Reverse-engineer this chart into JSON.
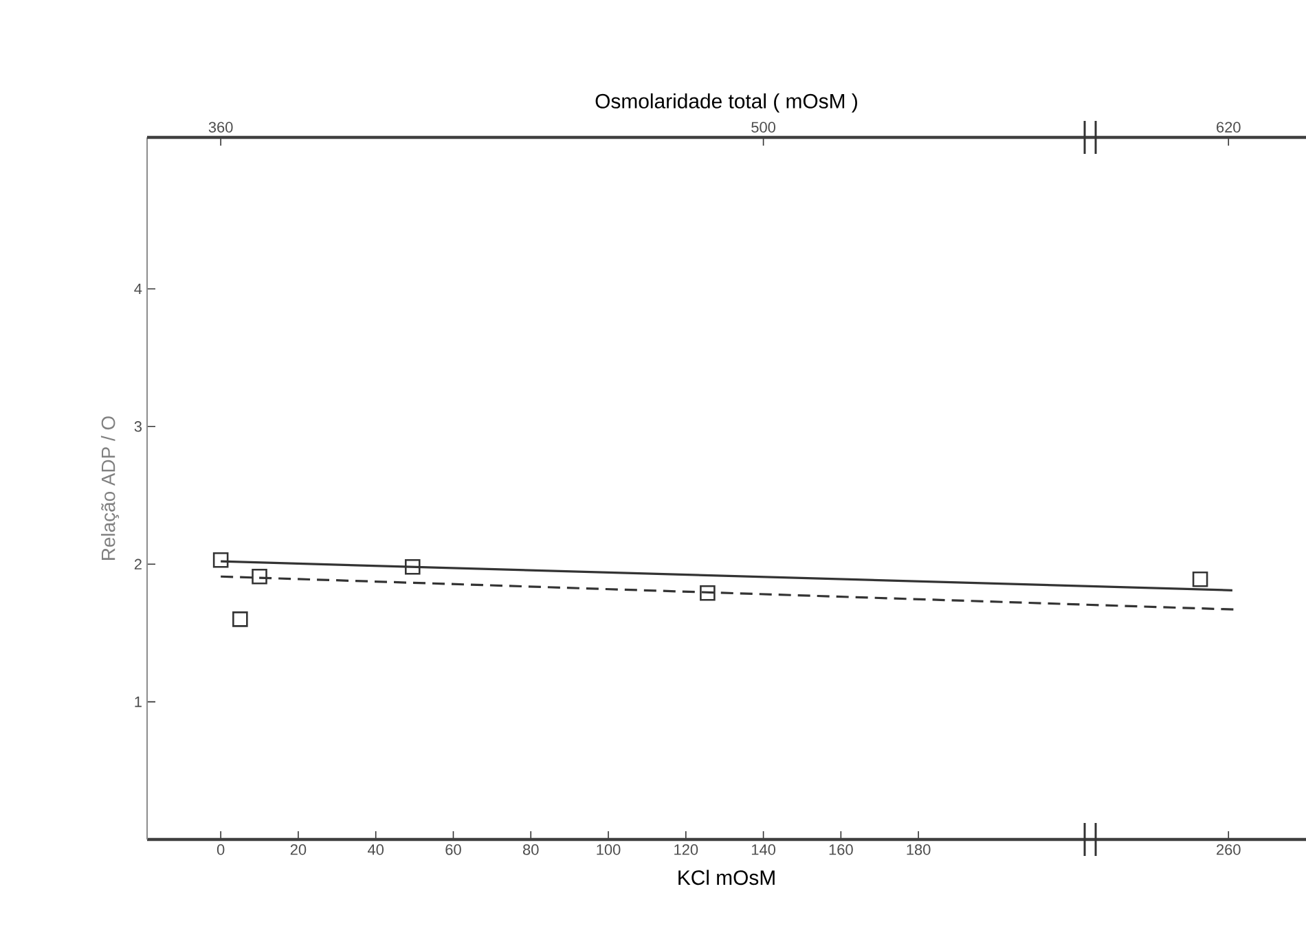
{
  "chart_data": {
    "type": "scatter",
    "xlabel": "KCl mOsM",
    "ylabel": "Relação ADP / O",
    "x2label": "Osmolaridade total ( mOsM )",
    "xlim": [
      -19,
      280
    ],
    "ylim": [
      0,
      5.1
    ],
    "xticks": [
      0,
      20,
      40,
      60,
      80,
      100,
      120,
      140,
      160,
      180,
      260
    ],
    "yticks": [
      1,
      2,
      3,
      4
    ],
    "x2lim": [
      341,
      640
    ],
    "x2ticks": [
      360,
      500,
      620
    ],
    "series": [
      {
        "color": "#333333",
        "x": [
          0,
          5,
          10,
          49.5,
          125.6,
          252.7
        ],
        "values": [
          2.03,
          1.6,
          1.91,
          1.98,
          1.79,
          1.89
        ],
        "marker": "square"
      },
      {
        "type": "line",
        "color": "#333333",
        "x": [
          0,
          261
        ],
        "values": [
          2.02,
          1.81
        ],
        "line_style": "solid"
      },
      {
        "type": "line",
        "color": "#333333",
        "x": [
          0,
          262
        ],
        "values": [
          1.91,
          1.67
        ],
        "line_style": "dashed"
      }
    ]
  }
}
